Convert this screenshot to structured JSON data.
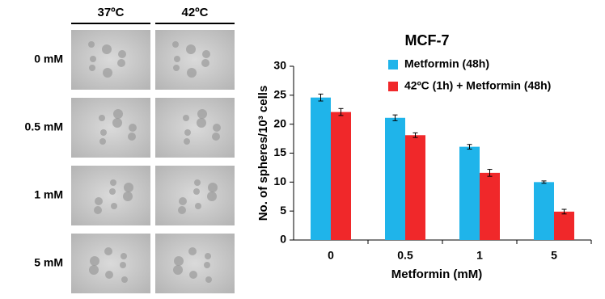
{
  "micrographs": {
    "columns": [
      "37ºC",
      "42ºC"
    ],
    "rows": [
      "0 mM",
      "0.5 mM",
      "1 mM",
      "5 mM"
    ]
  },
  "chart_data": {
    "type": "bar",
    "title": "MCF-7",
    "x_label": "Metformin (mM)",
    "y_label": "No. of spheres/10³ cells",
    "categories": [
      "0",
      "0.5",
      "1",
      "5"
    ],
    "series": [
      {
        "name": "Metformin (48h)",
        "color": "#1fb4ea",
        "values": [
          24.6,
          21.1,
          16.1,
          10.0
        ],
        "errors": [
          0.6,
          0.5,
          0.4,
          0.2
        ]
      },
      {
        "name": "42ºC (1h) + Metformin (48h)",
        "color": "#f0282a",
        "values": [
          22.1,
          18.1,
          11.6,
          4.9
        ],
        "errors": [
          0.6,
          0.4,
          0.6,
          0.4
        ]
      }
    ],
    "ylim": [
      0,
      30
    ],
    "yticks": [
      0,
      5,
      10,
      15,
      20,
      25,
      30
    ],
    "grid": false
  }
}
